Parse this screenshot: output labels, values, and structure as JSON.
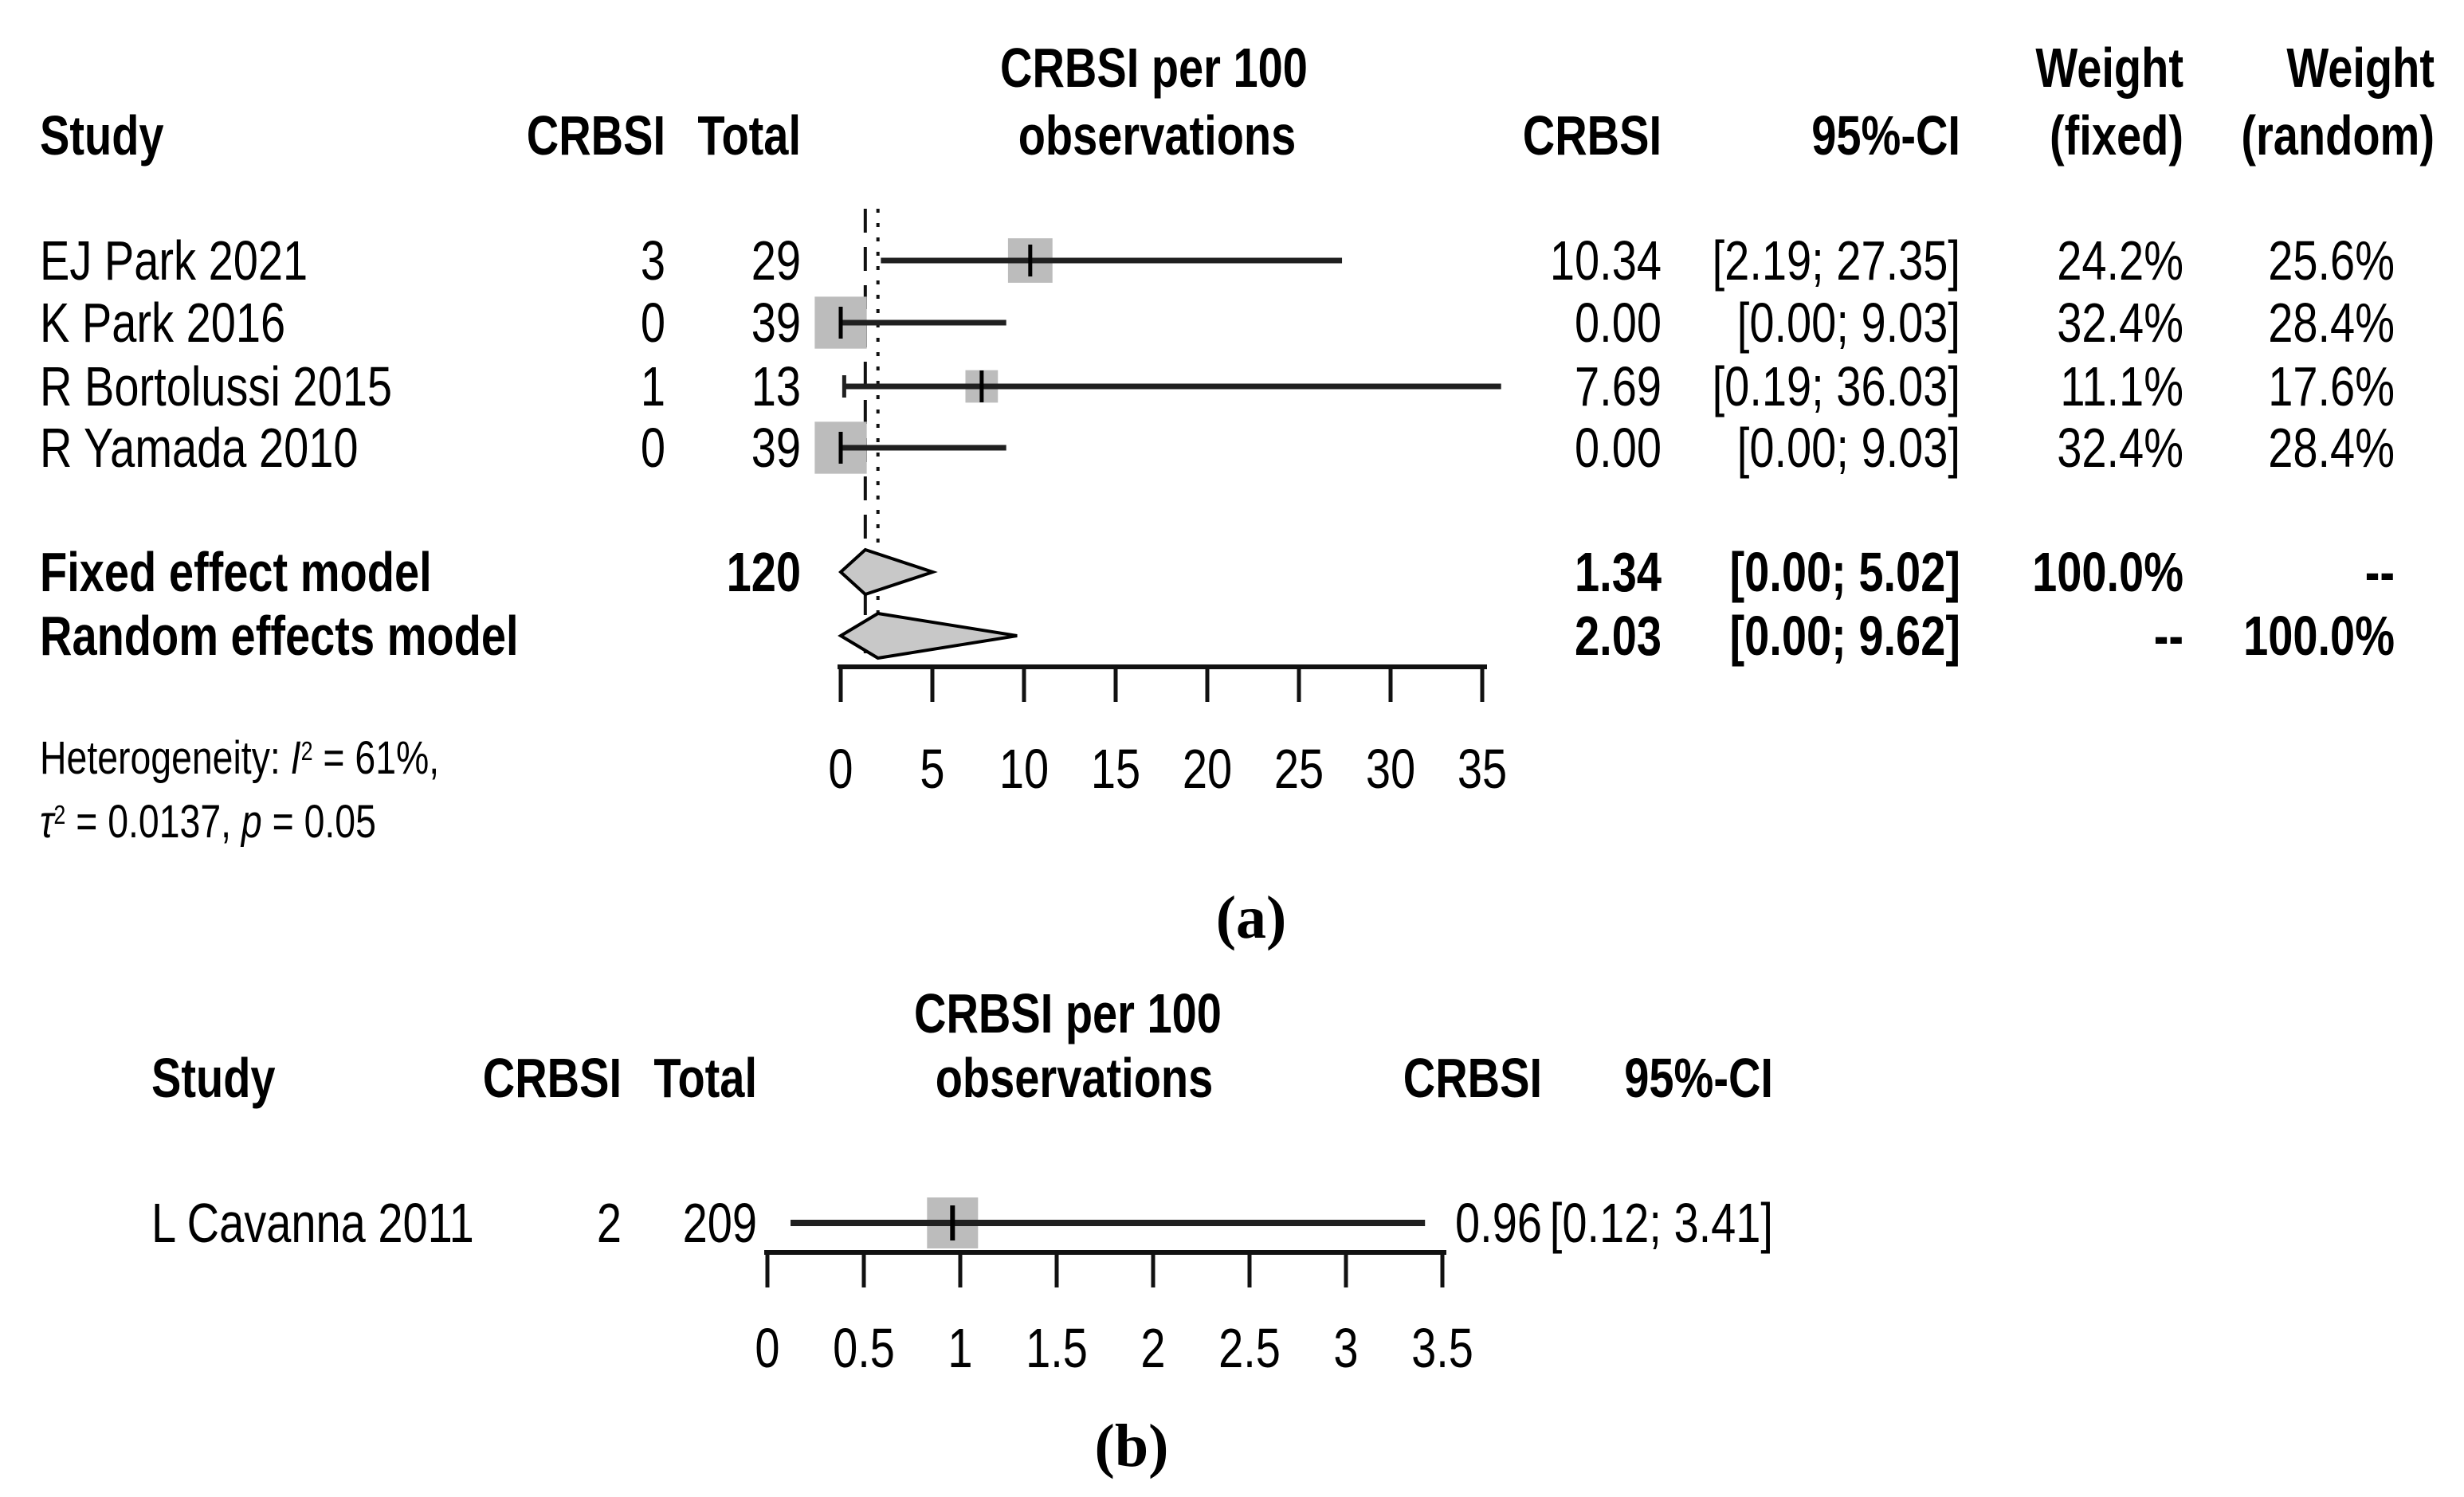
{
  "chart_data": [
    {
      "type": "forest",
      "panel": "a",
      "caption": "(a)",
      "header": {
        "study": "Study",
        "events": "CRBSI",
        "total": "Total",
        "plot_title": [
          "CRBSI per 100",
          "observations"
        ],
        "estimate": "CRBSI",
        "ci": "95%-CI",
        "weight_fixed": [
          "Weight",
          "(fixed)"
        ],
        "weight_random": [
          "Weight",
          "(random)"
        ]
      },
      "axis": {
        "min": 0,
        "max": 35,
        "tick_values": [
          0,
          5,
          10,
          15,
          20,
          25,
          30,
          35
        ],
        "tick_labels": [
          "0",
          "5",
          "10",
          "15",
          "20",
          "25",
          "30",
          "35"
        ]
      },
      "rows": [
        {
          "study": "EJ Park 2021",
          "crbsi": "3",
          "total": "29",
          "est": 10.34,
          "lo": 2.19,
          "hi": 27.35,
          "est_label": "10.34",
          "ci_label": "[2.19; 27.35]",
          "weight_fixed": "24.2%",
          "weight_random": "25.6%"
        },
        {
          "study": "K Park 2016",
          "crbsi": "0",
          "total": "39",
          "est": 0.0,
          "lo": 0.0,
          "hi": 9.03,
          "est_label": "0.00",
          "ci_label": "[0.00; 9.03]",
          "weight_fixed": "32.4%",
          "weight_random": "28.4%"
        },
        {
          "study": "R Bortolussi 2015",
          "crbsi": "1",
          "total": "13",
          "est": 7.69,
          "lo": 0.19,
          "hi": 36.03,
          "est_label": "7.69",
          "ci_label": "[0.19; 36.03]",
          "weight_fixed": "11.1%",
          "weight_random": "17.6%"
        },
        {
          "study": "R Yamada 2010",
          "crbsi": "0",
          "total": "39",
          "est": 0.0,
          "lo": 0.0,
          "hi": 9.03,
          "est_label": "0.00",
          "ci_label": "[0.00; 9.03]",
          "weight_fixed": "32.4%",
          "weight_random": "28.4%"
        }
      ],
      "models": [
        {
          "label": "Fixed effect model",
          "total": "120",
          "est": 1.34,
          "lo": 0.0,
          "hi": 5.02,
          "est_label": "1.34",
          "ci_label": "[0.00; 5.02]",
          "weight_fixed": "100.0%",
          "weight_random": "--"
        },
        {
          "label": "Random effects model",
          "total": "",
          "est": 2.03,
          "lo": 0.0,
          "hi": 9.62,
          "est_label": "2.03",
          "ci_label": "[0.00; 9.62]",
          "weight_fixed": "--",
          "weight_random": "100.0%"
        }
      ],
      "footnote": {
        "prefix": "Heterogeneity: ",
        "i": "I",
        "i_sup": "2",
        "i_rest": " = 61%,",
        "tau": "τ",
        "tau_sup": "2",
        "tau_rest": " = 0.0137, ",
        "p": "p",
        "p_rest": " = 0.05"
      }
    },
    {
      "type": "forest",
      "panel": "b",
      "caption": "(b)",
      "header": {
        "study": "Study",
        "events": "CRBSI",
        "total": "Total",
        "plot_title": [
          "CRBSI per 100",
          "observations"
        ],
        "estimate": "CRBSI",
        "ci": "95%-CI"
      },
      "axis": {
        "min": 0,
        "max": 3.5,
        "tick_values": [
          0,
          0.5,
          1,
          1.5,
          2,
          2.5,
          3,
          3.5
        ],
        "tick_labels": [
          "0",
          "0.5",
          "1",
          "1.5",
          "2",
          "2.5",
          "3",
          "3.5"
        ]
      },
      "rows": [
        {
          "study": "L Cavanna 2011",
          "crbsi": "2",
          "total": "209",
          "est": 0.96,
          "lo": 0.12,
          "hi": 3.41,
          "est_label": "0.96",
          "ci_label": "[0.12; 3.41]"
        }
      ]
    }
  ],
  "colors": {
    "ci_line": "#202020",
    "square": "#bcbcbc",
    "diamond_fill": "#c8c8c8",
    "diamond_stroke": "#000000",
    "axis": "#111111",
    "ref_line": "#111111",
    "text": "#000000"
  }
}
